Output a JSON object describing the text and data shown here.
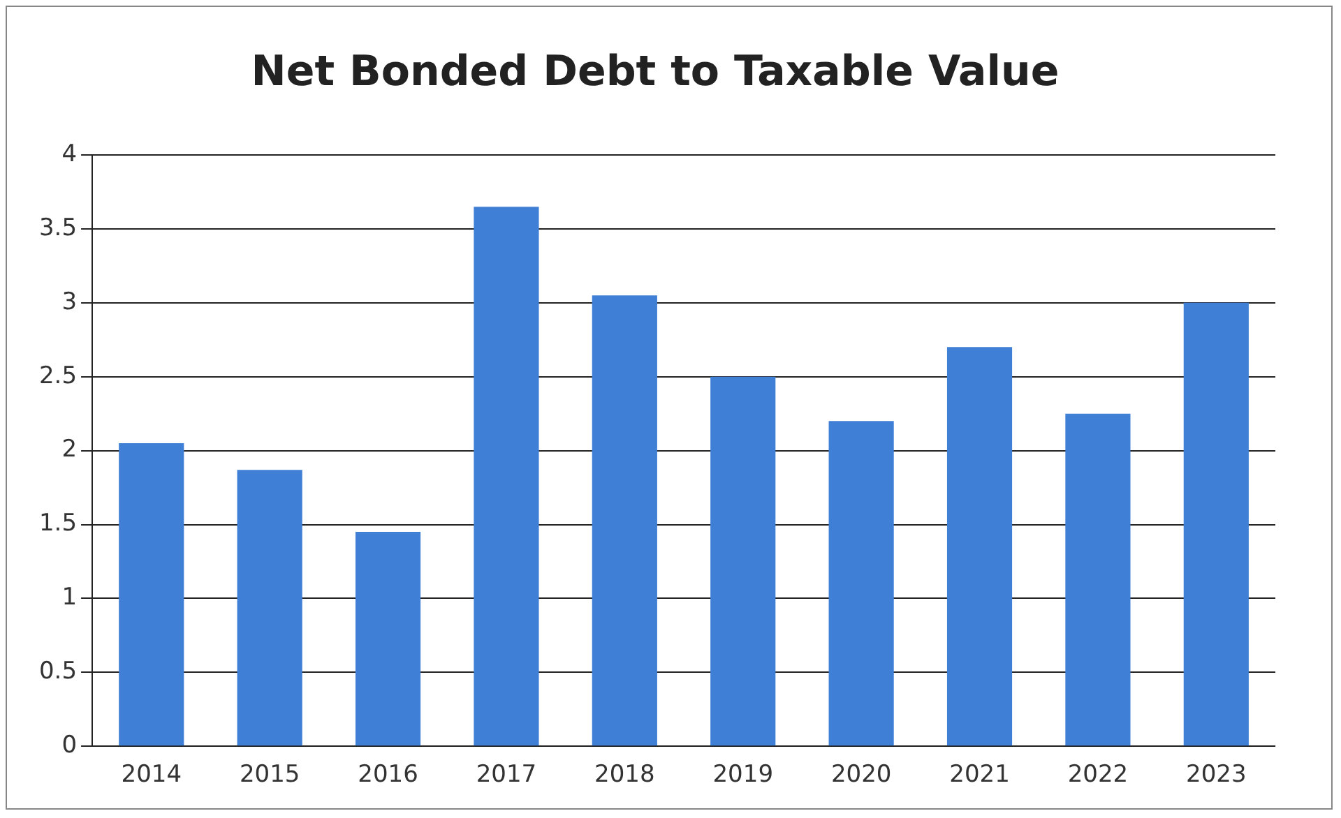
{
  "chart_data": {
    "type": "bar",
    "title": "Net Bonded Debt to Taxable Value",
    "categories": [
      "2014",
      "2015",
      "2016",
      "2017",
      "2018",
      "2019",
      "2020",
      "2021",
      "2022",
      "2023"
    ],
    "values": [
      2.05,
      1.87,
      1.45,
      3.65,
      3.05,
      2.5,
      2.2,
      2.7,
      2.25,
      3.0
    ],
    "color": "#3f7fd6",
    "ylim": [
      0,
      4
    ],
    "yticks": [
      0,
      0.5,
      1,
      1.5,
      2,
      2.5,
      3,
      3.5,
      4
    ],
    "grid": "y"
  }
}
